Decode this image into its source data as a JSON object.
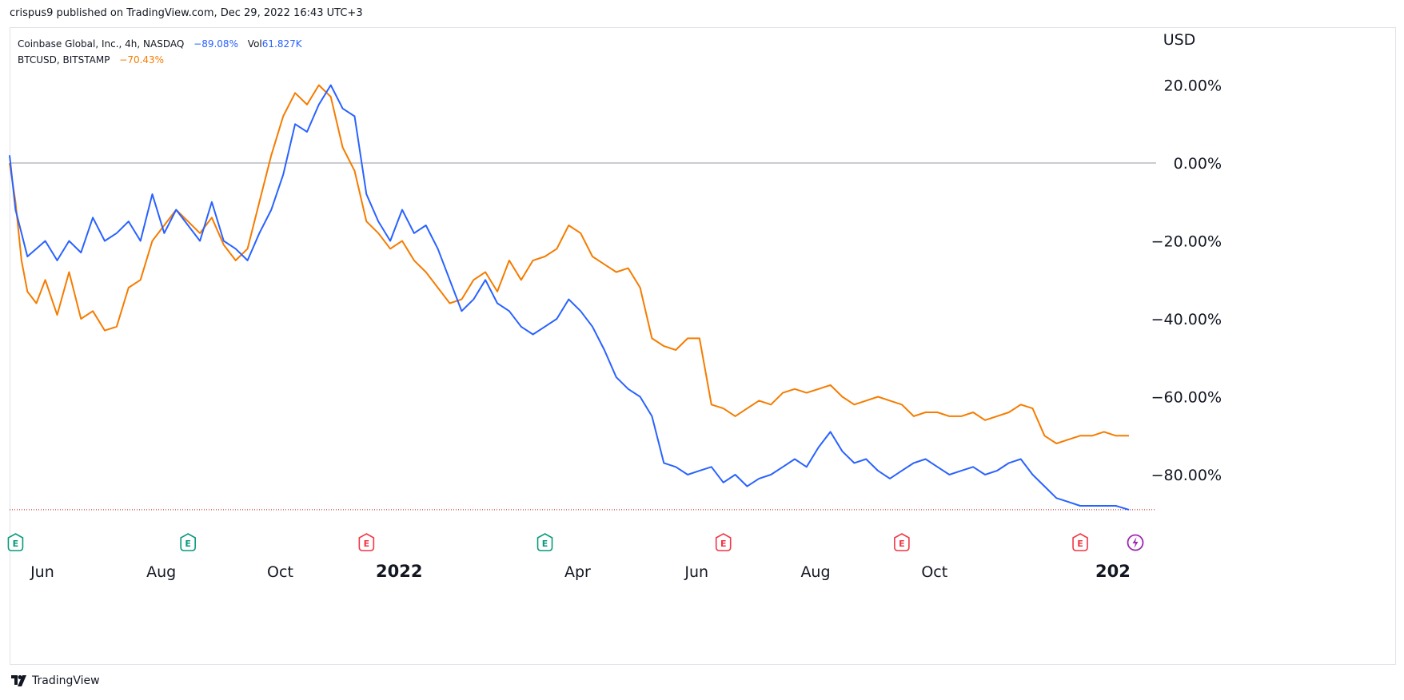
{
  "publisher": "crispus9 published on TradingView.com, Dec 29, 2022 16:43 UTC+3",
  "legend": {
    "coinbase": {
      "symbol": "Coinbase Global, Inc., 4h, NASDAQ",
      "change": "−89.08%",
      "vol_label": "Vol",
      "vol_value": "61.827K"
    },
    "btc": {
      "symbol": "BTCUSD, BITSTAMP",
      "change": "−70.43%"
    }
  },
  "footer": {
    "brand": "TradingView",
    "logo_icon": "tradingview-logo-icon"
  },
  "colors": {
    "coinbase": "#2962ff",
    "btc": "#f57c00",
    "zero_line": "#9598a1",
    "last_price": "#b71c1c"
  },
  "chart_data": {
    "type": "line",
    "currency_label": "USD",
    "y_ticks": [
      "20.00%",
      "0.00%",
      "−20.00%",
      "−40.00%",
      "−60.00%",
      "−80.00%"
    ],
    "y_tick_values": [
      20,
      0,
      -20,
      -40,
      -60,
      -80
    ],
    "x_ticks": [
      {
        "label": "Jun",
        "t": 0.55,
        "bold": false
      },
      {
        "label": "Aug",
        "t": 2.55,
        "bold": false
      },
      {
        "label": "Oct",
        "t": 4.55,
        "bold": false
      },
      {
        "label": "2022",
        "t": 6.55,
        "bold": true
      },
      {
        "label": "Apr",
        "t": 9.55,
        "bold": false
      },
      {
        "label": "Jun",
        "t": 11.55,
        "bold": false
      },
      {
        "label": "Aug",
        "t": 13.55,
        "bold": false
      },
      {
        "label": "Oct",
        "t": 15.55,
        "bold": false
      },
      {
        "label": "202",
        "t": 18.55,
        "bold": true
      }
    ],
    "ylim": [
      -97,
      37
    ],
    "xlim": [
      0,
      18.9
    ],
    "grid": false,
    "earnings_markers": [
      {
        "t": 0.1,
        "kind": "E",
        "status": "reported-positive"
      },
      {
        "t": 3.0,
        "kind": "E",
        "status": "reported-positive"
      },
      {
        "t": 6.0,
        "kind": "E",
        "status": "reported-negative"
      },
      {
        "t": 9.0,
        "kind": "E",
        "status": "reported-positive"
      },
      {
        "t": 12.0,
        "kind": "E",
        "status": "reported-negative"
      },
      {
        "t": 15.0,
        "kind": "E",
        "status": "reported-negative"
      },
      {
        "t": 18.0,
        "kind": "E",
        "status": "reported-negative"
      },
      {
        "t": 19.6,
        "kind": "lightning",
        "status": "upcoming"
      }
    ],
    "series": [
      {
        "name": "Coinbase Global, Inc., 4h, NASDAQ",
        "x": [
          0.0,
          0.1,
          0.2,
          0.3,
          0.45,
          0.6,
          0.8,
          1.0,
          1.2,
          1.4,
          1.6,
          1.8,
          2.0,
          2.2,
          2.4,
          2.6,
          2.8,
          3.0,
          3.2,
          3.4,
          3.6,
          3.8,
          4.0,
          4.2,
          4.4,
          4.6,
          4.8,
          5.0,
          5.2,
          5.4,
          5.6,
          5.8,
          6.0,
          6.2,
          6.4,
          6.6,
          6.8,
          7.0,
          7.2,
          7.4,
          7.6,
          7.8,
          8.0,
          8.2,
          8.4,
          8.6,
          8.8,
          9.0,
          9.2,
          9.4,
          9.6,
          9.8,
          10.0,
          10.2,
          10.4,
          10.6,
          10.8,
          11.0,
          11.2,
          11.4,
          11.6,
          11.8,
          12.0,
          12.2,
          12.4,
          12.6,
          12.8,
          13.0,
          13.2,
          13.4,
          13.6,
          13.8,
          14.0,
          14.2,
          14.4,
          14.6,
          14.8,
          15.0,
          15.2,
          15.4,
          15.6,
          15.8,
          16.0,
          16.2,
          16.4,
          16.6,
          16.8,
          17.0,
          17.2,
          17.4,
          17.6,
          17.8,
          18.0,
          18.2,
          18.4,
          18.6,
          18.82
        ],
        "y": [
          2,
          -12,
          -18,
          -24,
          -22,
          -20,
          -25,
          -20,
          -23,
          -14,
          -20,
          -18,
          -15,
          -20,
          -8,
          -18,
          -12,
          -16,
          -20,
          -10,
          -20,
          -22,
          -25,
          -18,
          -12,
          -3,
          10,
          8,
          15,
          20,
          14,
          12,
          -8,
          -15,
          -20,
          -12,
          -18,
          -16,
          -22,
          -30,
          -38,
          -35,
          -30,
          -36,
          -38,
          -42,
          -44,
          -42,
          -40,
          -35,
          -38,
          -42,
          -48,
          -55,
          -58,
          -60,
          -65,
          -77,
          -78,
          -80,
          -79,
          -78,
          -82,
          -80,
          -83,
          -81,
          -80,
          -78,
          -76,
          -78,
          -73,
          -69,
          -74,
          -77,
          -76,
          -79,
          -81,
          -79,
          -77,
          -76,
          -78,
          -80,
          -79,
          -78,
          -80,
          -79,
          -77,
          -76,
          -80,
          -83,
          -86,
          -87,
          -88,
          -88,
          -88,
          -88,
          -89
        ]
      },
      {
        "name": "BTCUSD, BITSTAMP",
        "x": [
          0.0,
          0.1,
          0.2,
          0.3,
          0.45,
          0.6,
          0.8,
          1.0,
          1.2,
          1.4,
          1.6,
          1.8,
          2.0,
          2.2,
          2.4,
          2.6,
          2.8,
          3.0,
          3.2,
          3.4,
          3.6,
          3.8,
          4.0,
          4.2,
          4.4,
          4.6,
          4.8,
          5.0,
          5.2,
          5.4,
          5.6,
          5.8,
          6.0,
          6.2,
          6.4,
          6.6,
          6.8,
          7.0,
          7.2,
          7.4,
          7.6,
          7.8,
          8.0,
          8.2,
          8.4,
          8.6,
          8.8,
          9.0,
          9.2,
          9.4,
          9.6,
          9.8,
          10.0,
          10.2,
          10.4,
          10.6,
          10.8,
          11.0,
          11.2,
          11.4,
          11.6,
          11.8,
          12.0,
          12.2,
          12.4,
          12.6,
          12.8,
          13.0,
          13.2,
          13.4,
          13.6,
          13.8,
          14.0,
          14.2,
          14.4,
          14.6,
          14.8,
          15.0,
          15.2,
          15.4,
          15.6,
          15.8,
          16.0,
          16.2,
          16.4,
          16.6,
          16.8,
          17.0,
          17.2,
          17.4,
          17.6,
          17.8,
          18.0,
          18.2,
          18.4,
          18.6,
          18.82
        ],
        "y": [
          0,
          -10,
          -25,
          -33,
          -36,
          -30,
          -39,
          -28,
          -40,
          -38,
          -43,
          -42,
          -32,
          -30,
          -20,
          -16,
          -12,
          -15,
          -18,
          -14,
          -21,
          -25,
          -22,
          -10,
          2,
          12,
          18,
          15,
          20,
          17,
          4,
          -2,
          -15,
          -18,
          -22,
          -20,
          -25,
          -28,
          -32,
          -36,
          -35,
          -30,
          -28,
          -33,
          -25,
          -30,
          -25,
          -24,
          -22,
          -16,
          -18,
          -24,
          -26,
          -28,
          -27,
          -32,
          -45,
          -47,
          -48,
          -45,
          -45,
          -62,
          -63,
          -65,
          -63,
          -61,
          -62,
          -59,
          -58,
          -59,
          -58,
          -57,
          -60,
          -62,
          -61,
          -60,
          -61,
          -62,
          -65,
          -64,
          -64,
          -65,
          -65,
          -64,
          -66,
          -65,
          -64,
          -62,
          -63,
          -70,
          -72,
          -71,
          -70,
          -70,
          -69,
          -70,
          -70
        ]
      }
    ]
  }
}
